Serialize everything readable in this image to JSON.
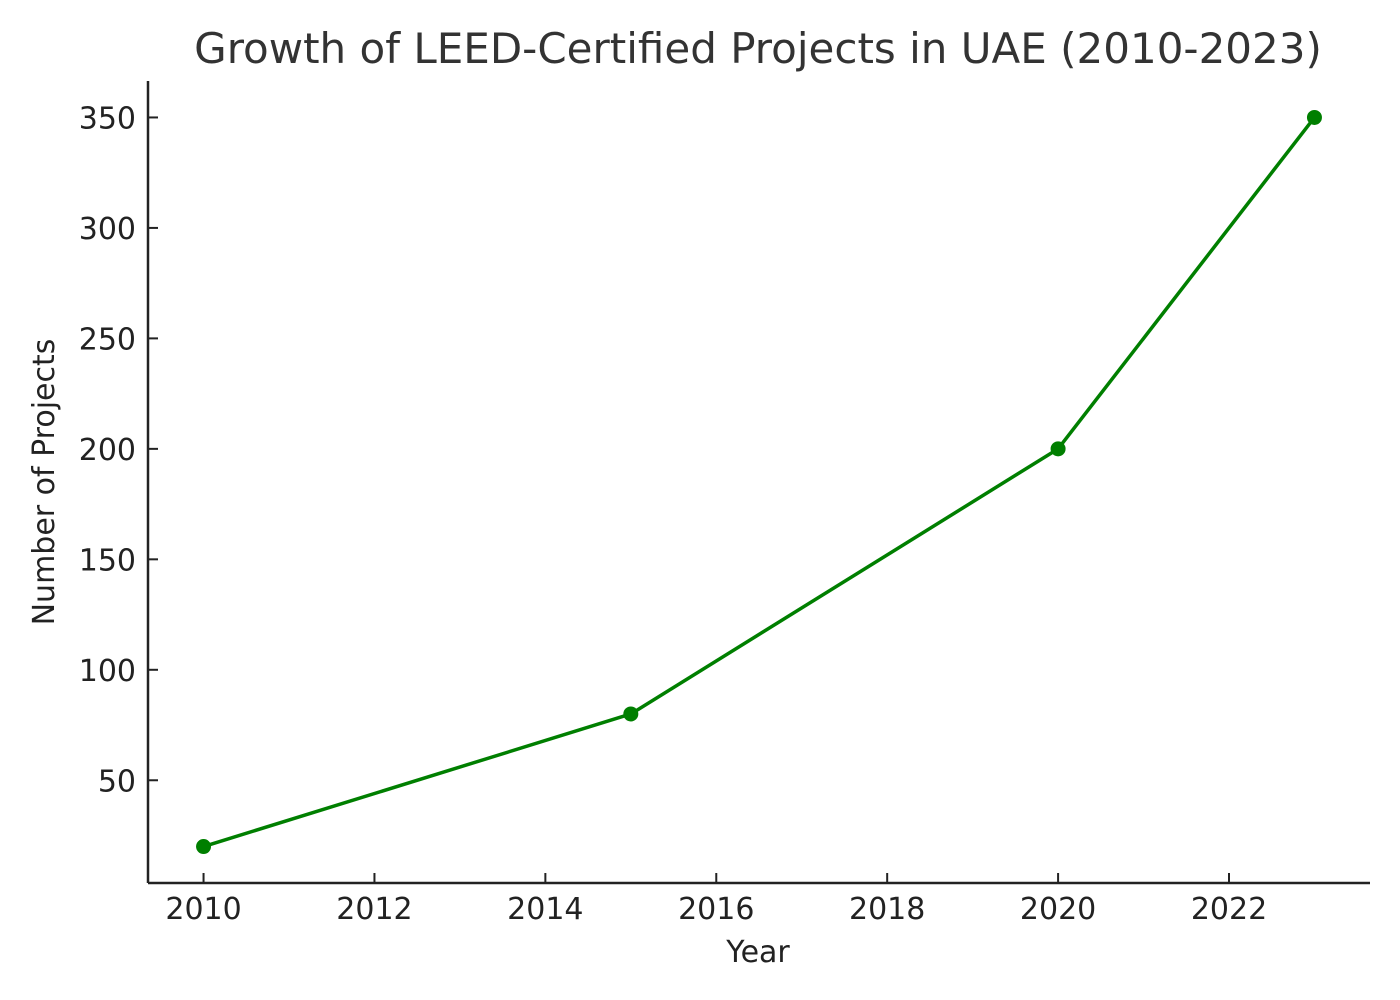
{
  "chart_data": {
    "type": "line",
    "title": "Growth of LEED-Certified Projects in UAE (2010-2023)",
    "xlabel": "Year",
    "ylabel": "Number of Projects",
    "x": [
      2010,
      2015,
      2020,
      2023
    ],
    "series": [
      {
        "values": [
          20,
          80,
          200,
          350
        ],
        "color": "#007f00"
      }
    ],
    "xlim": [
      2009.35,
      2023.65
    ],
    "ylim": [
      3.5,
      366.5
    ],
    "xticks": [
      2010,
      2012,
      2014,
      2016,
      2018,
      2020,
      2022
    ],
    "yticks": [
      50,
      100,
      150,
      200,
      250,
      300,
      350
    ],
    "grid": false,
    "legend": false,
    "marker": "circle"
  }
}
